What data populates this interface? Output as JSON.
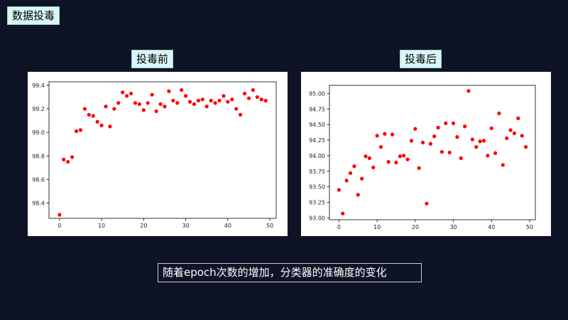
{
  "title": "数据投毒",
  "left_caption": "投毒前",
  "right_caption": "投毒后",
  "bottom_caption": "随着epoch次数的增加，分类器的准确度的变化",
  "chart_data": [
    {
      "type": "scatter",
      "color": "#ff0000",
      "xlim": [
        -2.5,
        51.5
      ],
      "ylim": [
        98.27,
        99.43
      ],
      "x_ticks": [
        0,
        10,
        20,
        30,
        40,
        50
      ],
      "y_ticks": [
        98.4,
        98.6,
        98.8,
        99.0,
        99.2,
        99.4
      ],
      "y_tick_labels": [
        "98.4",
        "98.6",
        "98.8",
        "99.0",
        "99.2",
        "99.4"
      ],
      "x": [
        0,
        1,
        2,
        3,
        4,
        5,
        6,
        7,
        8,
        9,
        10,
        11,
        12,
        13,
        14,
        15,
        16,
        17,
        18,
        19,
        20,
        21,
        22,
        23,
        24,
        25,
        26,
        27,
        28,
        29,
        30,
        31,
        32,
        33,
        34,
        35,
        36,
        37,
        38,
        39,
        40,
        41,
        42,
        43,
        44,
        45,
        46,
        47,
        48,
        49
      ],
      "y": [
        98.3,
        98.77,
        98.75,
        98.79,
        99.01,
        99.02,
        99.2,
        99.15,
        99.14,
        99.09,
        99.06,
        99.22,
        99.05,
        99.2,
        99.25,
        99.34,
        99.31,
        99.33,
        99.25,
        99.24,
        99.19,
        99.25,
        99.32,
        99.18,
        99.24,
        99.22,
        99.35,
        99.27,
        99.25,
        99.36,
        99.31,
        99.26,
        99.24,
        99.27,
        99.28,
        99.22,
        99.27,
        99.25,
        99.27,
        99.31,
        99.26,
        99.28,
        99.2,
        99.15,
        99.33,
        99.29,
        99.36,
        99.3,
        99.28,
        99.27
      ]
    },
    {
      "type": "scatter",
      "color": "#ff0000",
      "xlim": [
        -2.5,
        51.5
      ],
      "ylim": [
        92.97,
        95.13
      ],
      "x_ticks": [
        0,
        10,
        20,
        30,
        40,
        50
      ],
      "y_ticks": [
        93.0,
        93.25,
        93.5,
        93.75,
        94.0,
        94.25,
        94.5,
        94.75,
        95.0
      ],
      "y_tick_labels": [
        "93.00",
        "93.25",
        "93.50",
        "93.75",
        "94.00",
        "94.25",
        "94.50",
        "94.75",
        "95.00"
      ],
      "x": [
        0,
        1,
        2,
        3,
        4,
        5,
        6,
        7,
        8,
        9,
        10,
        11,
        12,
        13,
        14,
        15,
        16,
        17,
        18,
        19,
        20,
        21,
        22,
        23,
        24,
        25,
        26,
        27,
        28,
        29,
        30,
        31,
        32,
        33,
        34,
        35,
        36,
        37,
        38,
        39,
        40,
        41,
        42,
        43,
        44,
        45,
        46,
        47,
        48,
        49
      ],
      "y": [
        93.45,
        93.07,
        93.6,
        93.72,
        93.83,
        93.37,
        93.63,
        93.99,
        93.96,
        93.81,
        94.32,
        94.14,
        94.35,
        93.9,
        94.34,
        93.89,
        93.99,
        94.0,
        93.94,
        94.24,
        94.43,
        93.8,
        94.21,
        93.23,
        94.19,
        94.31,
        94.45,
        94.06,
        94.52,
        94.05,
        94.52,
        94.3,
        93.96,
        94.47,
        95.04,
        94.26,
        94.14,
        94.23,
        94.24,
        94.0,
        94.44,
        94.04,
        94.68,
        93.85,
        94.28,
        94.41,
        94.36,
        94.6,
        94.32,
        94.14
      ]
    }
  ]
}
